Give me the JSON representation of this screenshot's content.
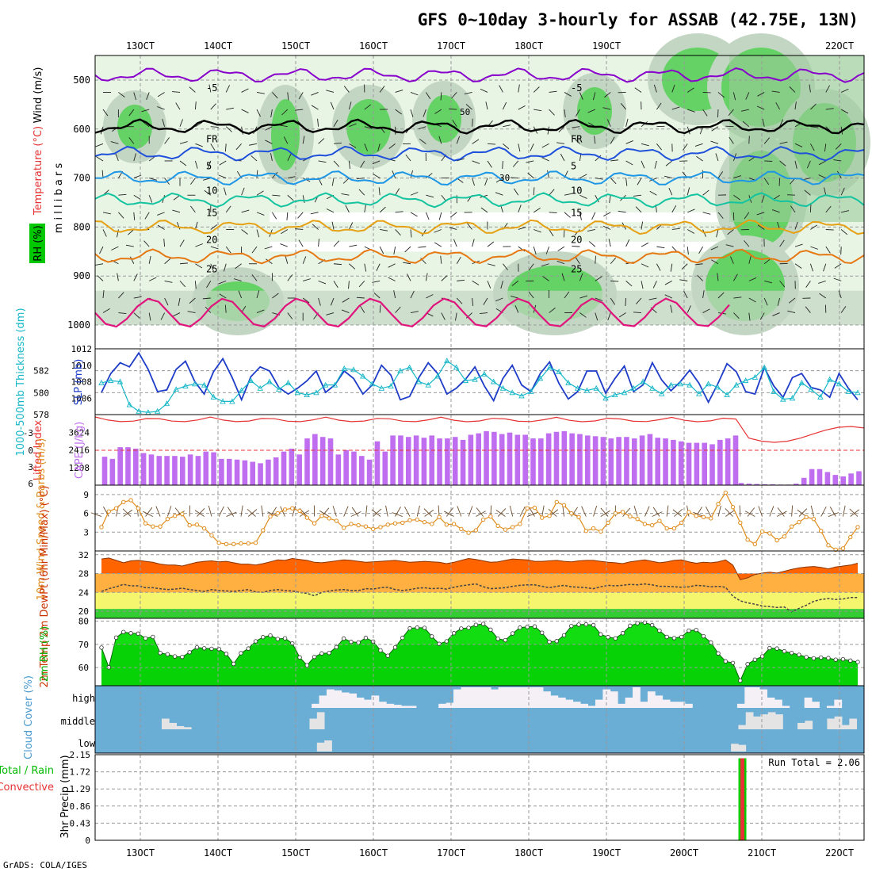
{
  "title": "GFS 0~10day 3-hourly for ASSAB (42.75E, 13N)",
  "credit": "GrADS: COLA/IGES",
  "date_labels": [
    "13OCT",
    "14OCT",
    "15OCT",
    "16OCT",
    "17OCT",
    "18OCT",
    "19OCT",
    "20OCT",
    "21OCT",
    "22OCT"
  ],
  "colors": {
    "purple": "#8800cc",
    "black": "#000000",
    "blue": "#1e50dc",
    "lightblue": "#1e96e6",
    "teal": "#14c3a0",
    "orange1": "#e6a014",
    "orange2": "#e67814",
    "magenta": "#e0147c",
    "cyan": "#17b7c8",
    "slp": "#1e3cc8",
    "cape": "#c06ef0",
    "li": "#e63232",
    "wind": "#e08c1c",
    "temp": "#ff6400",
    "rh": "#00cc00",
    "cloud": "#6aadd5",
    "precip_total": "#00cc00",
    "precip_conv": "#e63232"
  },
  "chart_data": [
    {
      "type": "contour",
      "panel": "Upper-air RH, temperature and wind",
      "ylabel": "m i l l i b a r s",
      "side_labels": {
        "wind": "Wind (m/s)",
        "temperature": "Temperature (°C)",
        "rh": "RH (%)"
      },
      "y_ticks": [
        500,
        600,
        700,
        800,
        900,
        1000
      ],
      "ylim": [
        1000,
        450
      ],
      "temperature_contours": [
        {
          "label": "-5",
          "level_mb": 490
        },
        {
          "label": "FR",
          "level_mb": 595
        },
        {
          "label": "5",
          "level_mb": 650
        },
        {
          "label": "10",
          "level_mb": 700
        },
        {
          "label": "15",
          "level_mb": 745
        },
        {
          "label": "20",
          "level_mb": 800
        },
        {
          "label": "25",
          "level_mb": 860
        }
      ],
      "rh_labels": [
        "30",
        "50"
      ]
    },
    {
      "type": "line",
      "panel": "Thickness and SLP",
      "ylabel_left": "1000-500mb Thickness (dm)",
      "ylabel_right": "SLP (mb)",
      "left_ticks": [
        578,
        580,
        582
      ],
      "right_ticks": [
        1006,
        1008,
        1010,
        1012
      ],
      "slp_ylim": [
        1004,
        1012
      ],
      "thickness_ylim": [
        578,
        584
      ],
      "slp_mb": [
        1006.7,
        1009.0,
        1010.3,
        1009.8,
        1011.5,
        1009.5,
        1006.8,
        1007.0,
        1009.5,
        1010.5,
        1008.0,
        1006.5,
        1009.2,
        1010.8,
        1008.5,
        1005.8,
        1008.6,
        1009.8,
        1009.3,
        1007.3,
        1006.5,
        1007.2,
        1008.1,
        1009.3,
        1006.7,
        1007.6,
        1009.3,
        1008.4,
        1006.5,
        1007.6,
        1010.0,
        1008.8,
        1005.8,
        1006.2,
        1008.5,
        1010.3,
        1009.0,
        1006.5,
        1007.2,
        1008.3,
        1009.8,
        1007.5,
        1005.7,
        1008.4,
        1010.0,
        1007.6,
        1006.8,
        1009.0,
        1010.4,
        1007.8,
        1005.9,
        1006.8,
        1009.3,
        1009.3,
        1006.6,
        1008.4,
        1009.9,
        1006.8,
        1007.6,
        1010.3,
        1008.2,
        1006.9,
        1008.0,
        1009.4,
        1007.8,
        1005.5,
        1007.7,
        1010.2,
        1009.2,
        1006.8,
        1006.5,
        1009.7,
        1007.5,
        1006.1,
        1008.5,
        1009.0,
        1007.3,
        1007.0,
        1006.1,
        1009.0,
        1007.2,
        1005.8
      ],
      "thickness_dm": [
        580.9,
        581.1,
        581.0,
        578.9,
        578.3,
        578.2,
        578.3,
        579.0,
        580.3,
        580.6,
        580.8,
        580.7,
        579.6,
        579.2,
        579.2,
        580.2,
        581.1,
        580.4,
        581.0,
        580.3,
        580.9,
        580.0,
        579.8,
        580.0,
        580.7,
        580.7,
        582.2,
        582.1,
        581.5,
        580.8,
        580.4,
        580.6,
        582.0,
        582.3,
        581.0,
        580.7,
        581.5,
        582.9,
        582.3,
        581.1,
        581.2,
        581.7,
        581.0,
        580.4,
        580.0,
        579.7,
        580.1,
        581.3,
        582.3,
        581.9,
        580.9,
        580.4,
        580.2,
        580.4,
        579.5,
        579.8,
        580.0,
        580.4,
        581.0,
        580.4,
        579.9,
        580.7,
        580.8,
        580.7,
        579.9,
        580.8,
        580.5,
        579.8,
        580.7,
        581.1,
        581.4,
        582.3,
        580.1,
        579.4,
        579.5,
        580.9,
        580.3,
        579.6,
        581.2,
        580.8,
        580.1,
        580.0
      ]
    },
    {
      "type": "bar",
      "panel": "Lifted Index and CAPE",
      "ylabel_left": "Lifted Index",
      "ylabel_right": "CAPE (J/kg)",
      "li_ticks": [
        "-3",
        "0",
        "3",
        "6"
      ],
      "cape_ticks": [
        1208,
        2416,
        3624
      ],
      "cape_ylim": [
        0,
        4832
      ],
      "cape_jkg": [
        1950,
        1800,
        2600,
        2600,
        2500,
        2200,
        2100,
        2000,
        2000,
        2000,
        1950,
        2100,
        2000,
        2300,
        2250,
        1800,
        1800,
        1750,
        1700,
        1600,
        1500,
        1750,
        1900,
        2300,
        2500,
        2100,
        3200,
        3500,
        3300,
        3200,
        2100,
        2400,
        2300,
        2000,
        1750,
        3000,
        2300,
        3400,
        3400,
        3300,
        3400,
        3250,
        3400,
        3200,
        3200,
        3300,
        3100,
        3450,
        3550,
        3700,
        3650,
        3500,
        3600,
        3450,
        3450,
        3200,
        3200,
        3550,
        3650,
        3700,
        3550,
        3500,
        3400,
        3350,
        3300,
        3200,
        3300,
        3300,
        3200,
        3400,
        3500,
        3250,
        3200,
        3100,
        3000,
        2900,
        2900,
        2900,
        2800,
        3100,
        3200,
        3400
      ],
      "cape_after_break": [
        150,
        100,
        80,
        60,
        60,
        40,
        40,
        100,
        500,
        1100,
        1100,
        900,
        700,
        600,
        800,
        950
      ]
    },
    {
      "type": "line",
      "panel": "10m wind",
      "ylabel": "10m Wind Speed & Barbs (m/s)",
      "y_ticks": [
        3,
        6,
        9
      ],
      "ylim": [
        0,
        10.5
      ],
      "speed_ms": [
        3.8,
        6.3,
        6.8,
        7.8,
        8.1,
        6.8,
        4.4,
        3.9,
        3.9,
        5.1,
        5.6,
        5.9,
        4.1,
        4.2,
        3.6,
        2.5,
        1.3,
        1.1,
        1.1,
        1.2,
        1.2,
        1.3,
        3.3,
        5.5,
        6.0,
        6.6,
        6.8,
        6.4,
        5.3,
        4.4,
        5.6,
        5.2,
        4.8,
        3.7,
        4.3,
        4.1,
        3.9,
        3.5,
        3.8,
        4.2,
        4.4,
        4.5,
        4.9,
        5.0,
        4.6,
        4.3,
        5.4,
        4.2,
        4.3,
        3.5,
        2.9,
        3.3,
        5.0,
        5.5,
        4.0,
        3.4,
        3.8,
        4.3,
        6.8,
        6.9,
        5.3,
        5.6,
        7.8,
        7.3,
        6.0,
        5.4,
        3.2,
        3.6,
        3.1,
        4.5,
        6.0,
        6.2,
        5.5,
        5.1,
        4.3,
        4.1,
        4.8,
        3.6,
        3.6,
        4.5,
        6.2,
        5.6,
        5.4,
        5.2,
        7.5,
        9.3,
        7.0,
        4.5,
        1.8,
        1.1,
        3.1,
        2.8,
        1.7,
        2.3,
        3.9,
        4.6,
        5.4,
        5.1,
        3.2,
        0.9,
        0.2,
        0.4,
        2.2,
        3.8
      ]
    },
    {
      "type": "area",
      "panel": "2m temperature and dew point",
      "ylabel": "2m Temp 2m DewPt (6hr Min/Max) (°C)",
      "y_ticks": [
        20,
        24,
        28,
        32
      ],
      "ylim": [
        18.5,
        32.8
      ],
      "temp_c": [
        31.1,
        31.3,
        30.8,
        30.3,
        30.7,
        30.8,
        30.6,
        30.4,
        30.0,
        29.8,
        29.8,
        29.6,
        30.0,
        30.4,
        30.6,
        30.7,
        30.5,
        30.6,
        30.3,
        30.0,
        30.0,
        29.8,
        30.1,
        30.5,
        30.9,
        30.8,
        31.2,
        31.0,
        30.8,
        30.4,
        30.3,
        30.5,
        30.7,
        30.9,
        30.8,
        30.6,
        30.4,
        30.5,
        30.6,
        30.7,
        30.8,
        30.6,
        30.4,
        30.5,
        30.6,
        30.5,
        30.4,
        30.1,
        30.4,
        30.8,
        31.2,
        31.0,
        30.7,
        30.4,
        30.5,
        30.8,
        31.1,
        31.0,
        30.9,
        30.6,
        30.6,
        30.7,
        30.8,
        30.6,
        30.5,
        30.7,
        30.8,
        30.8,
        30.6,
        30.4,
        30.3,
        30.1,
        30.5,
        30.7,
        30.9,
        30.6,
        30.3,
        30.5,
        30.8,
        30.9,
        30.5,
        30.2,
        30.4,
        30.3,
        30.5,
        30.9,
        29.8,
        26.7,
        27.1,
        27.8,
        28.1,
        28.3,
        28.1,
        28.5,
        28.9,
        29.2,
        29.4,
        29.5,
        29.3,
        29.0,
        29.4,
        29.6,
        29.8,
        30.2
      ],
      "dewpt_c": [
        24.2,
        24.8,
        25.2,
        25.7,
        25.4,
        25.4,
        25.0,
        25.0,
        24.8,
        24.6,
        24.7,
        24.9,
        24.6,
        24.4,
        24.2,
        24.6,
        24.4,
        24.3,
        24.2,
        24.4,
        24.6,
        24.1,
        24.0,
        24.4,
        24.6,
        24.4,
        24.3,
        24.0,
        23.8,
        23.3,
        24.0,
        24.3,
        24.5,
        24.6,
        24.4,
        24.4,
        24.8,
        24.7,
        25.0,
        25.1,
        24.6,
        24.4,
        24.6,
        24.9,
        25.0,
        24.8,
        24.9,
        24.7,
        25.1,
        25.4,
        25.6,
        25.8,
        25.2,
        24.8,
        24.9,
        25.0,
        25.3,
        25.5,
        25.6,
        25.6,
        25.3,
        25.0,
        25.3,
        25.5,
        25.2,
        25.1,
        25.0,
        24.8,
        25.2,
        25.5,
        25.4,
        25.5,
        25.7,
        25.6,
        25.8,
        25.6,
        25.3,
        25.3,
        25.2,
        25.1,
        25.2,
        25.5,
        25.4,
        25.2,
        25.3,
        25.1,
        23.2,
        22.2,
        21.8,
        21.5,
        21.1,
        21.0,
        20.8,
        20.9,
        19.9,
        20.6,
        21.3,
        22.1,
        22.5,
        22.7,
        22.5,
        22.6,
        22.9,
        22.9
      ]
    },
    {
      "type": "area",
      "panel": "2m relative humidity",
      "ylabel": "2m RH (%)",
      "y_ticks": [
        60,
        70,
        80
      ],
      "ylim": [
        52.2,
        81.2
      ],
      "rh_pct": [
        68.6,
        60.1,
        72.9,
        75.3,
        74.8,
        74.6,
        72.6,
        73.2,
        66.3,
        65.7,
        64.8,
        64.6,
        66.6,
        68.7,
        68.3,
        68.1,
        68.0,
        65.9,
        61.6,
        66.2,
        68.2,
        71.3,
        73.1,
        73.8,
        72.3,
        72.6,
        70.4,
        64.4,
        61.0,
        64.6,
        66.1,
        66.3,
        68.8,
        72.5,
        71.1,
        70.8,
        72.8,
        71.2,
        67.4,
        65.1,
        68.7,
        72.8,
        76.9,
        77.2,
        77.1,
        73.4,
        70.2,
        71.3,
        74.8,
        76.8,
        77.1,
        78.4,
        78.8,
        76.3,
        72.4,
        71.8,
        74.7,
        77.2,
        77.5,
        77.7,
        75.0,
        71.1,
        71.4,
        73.9,
        77.9,
        78.5,
        78.6,
        78.3,
        74.3,
        73.1,
        72.6,
        74.8,
        78.0,
        79.1,
        79.4,
        78.3,
        75.9,
        73.2,
        72.7,
        73.2,
        75.9,
        76.2,
        73.5,
        70.8,
        66.1,
        62.7,
        62.0,
        54.4,
        61.5,
        63.4,
        64.8,
        68.4,
        68.2,
        67.0,
        66.3,
        65.5,
        64.5,
        64.0,
        64.3,
        64.1,
        63.4,
        63.6,
        63.0,
        62.4
      ]
    },
    {
      "type": "heatmap",
      "panel": "Cloud cover",
      "ylabel": "Cloud Cover (%)",
      "rows": [
        "high",
        "middle",
        "low"
      ],
      "note": "fraction of sky cleared (0 = full cover, 1 = clear) per 3h step",
      "high": [
        0,
        0,
        0,
        0,
        0,
        0,
        0,
        0,
        0,
        0,
        0,
        0,
        0,
        0,
        0,
        0,
        0,
        0,
        0,
        0,
        0,
        0,
        0,
        0,
        0,
        0,
        0,
        0,
        0,
        0.2,
        0.6,
        0.9,
        0.85,
        0.75,
        0.7,
        0.5,
        0.4,
        0.6,
        0.3,
        0.2,
        0.15,
        0.1,
        0.1,
        0.0,
        0.0,
        0.0,
        0.2,
        0.25,
        0.9,
        1.0,
        1.0,
        1.0,
        1.0,
        0.9,
        1.0,
        1.0,
        1.0,
        1.0,
        1.0,
        1.0,
        0.8,
        0.6,
        0.5,
        0.4,
        0.3,
        0.2,
        0.1,
        0.4,
        0.9,
        0.8,
        0.2,
        0.5,
        1.0,
        0.3,
        0.8,
        0.6,
        0.4,
        0.3,
        0.3,
        0.2,
        0.0,
        0.0,
        0.0,
        0.0,
        0.0,
        0.0,
        0.2,
        1.0,
        1.0,
        0.9,
        0.5,
        0.4,
        0.1,
        0.0,
        0.0,
        0.5,
        0.3,
        0.0,
        0.1,
        0.4,
        0.0,
        0.0,
        0.0
      ],
      "middle": [
        0,
        0,
        0,
        0,
        0,
        0,
        0,
        0,
        0,
        0.5,
        0.3,
        0.15,
        0.1,
        0,
        0,
        0,
        0,
        0,
        0,
        0,
        0,
        0,
        0,
        0,
        0,
        0,
        0,
        0,
        0,
        0.5,
        0.8,
        0,
        0,
        0,
        0,
        0,
        0,
        0,
        0,
        0,
        0,
        0,
        0,
        0,
        0,
        0,
        0,
        0,
        0,
        0,
        0,
        0,
        0,
        0,
        0,
        0,
        0,
        0,
        0,
        0,
        0,
        0,
        0,
        0,
        0,
        0,
        0,
        0,
        0,
        0,
        0,
        0,
        0,
        0,
        0,
        0,
        0,
        0,
        0,
        0,
        0,
        0,
        0,
        0,
        0,
        0,
        0,
        0.2,
        0.8,
        0.6,
        0.7,
        0.8,
        0.7,
        0,
        0,
        0.3,
        0.4,
        0,
        0,
        0.5,
        0.6,
        0.2,
        0.5,
        0
      ],
      "low": [
        0,
        0,
        0,
        0,
        0,
        0,
        0,
        0,
        0,
        0,
        0,
        0,
        0,
        0,
        0,
        0,
        0,
        0,
        0,
        0,
        0,
        0,
        0,
        0,
        0,
        0,
        0,
        0,
        0,
        0,
        0.4,
        0.5,
        0,
        0,
        0,
        0,
        0,
        0,
        0,
        0,
        0,
        0,
        0,
        0,
        0,
        0,
        0,
        0,
        0,
        0,
        0,
        0,
        0,
        0,
        0,
        0,
        0,
        0,
        0,
        0,
        0,
        0,
        0,
        0,
        0,
        0,
        0,
        0,
        0,
        0,
        0,
        0,
        0,
        0,
        0,
        0,
        0,
        0,
        0,
        0,
        0,
        0,
        0,
        0,
        0,
        0,
        0.35,
        0.3,
        0,
        0,
        0,
        0,
        0,
        0,
        0,
        0,
        0,
        0,
        0,
        0,
        0,
        0,
        0,
        0
      ]
    },
    {
      "type": "bar",
      "panel": "3hr precipitation",
      "ylabel": "3hr Precip (mm)",
      "legend": [
        "Total / Rain",
        "Convective"
      ],
      "y_ticks": [
        0,
        0.43,
        0.86,
        1.29,
        1.72,
        2.15
      ],
      "ylim": [
        0,
        2.15
      ],
      "run_total_label": "Run Total = 2.06",
      "event": {
        "date_index": 7.75,
        "total_mm": 2.06,
        "convective_mm": 2.06
      }
    }
  ]
}
